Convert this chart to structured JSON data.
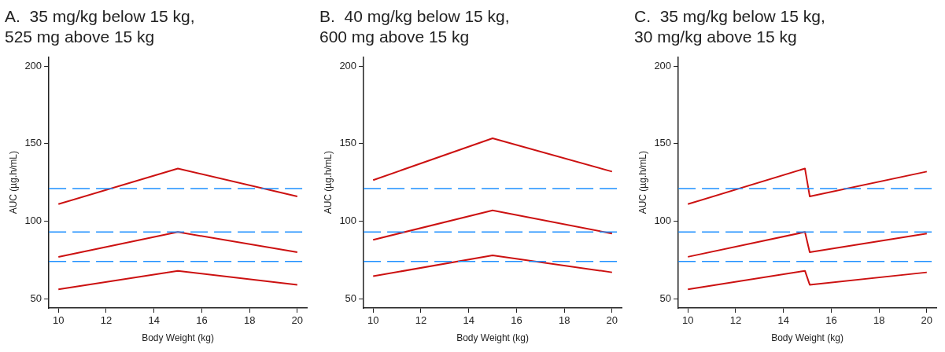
{
  "chart_data": [
    {
      "type": "line",
      "title": "A.  35 mg/kg below 15 kg,\n525 mg above 15 kg",
      "xlabel": "Body Weight (kg)",
      "ylabel": "AUC (µg.h/mL)",
      "xlim": [
        9.6,
        20.4
      ],
      "xticks": [
        10,
        12,
        14,
        16,
        18,
        20
      ],
      "ylim": [
        44,
        206
      ],
      "yticks": [
        50,
        100,
        150,
        200
      ],
      "grid": false,
      "legend": false,
      "line_style": "solid",
      "marker": "none",
      "series": [
        {
          "color": "#cc1111",
          "x": [
            10,
            15,
            20
          ],
          "values": [
            111,
            134,
            116
          ]
        },
        {
          "color": "#cc1111",
          "x": [
            10,
            15,
            20
          ],
          "values": [
            77,
            93,
            80
          ]
        },
        {
          "color": "#cc1111",
          "x": [
            10,
            15,
            20
          ],
          "values": [
            56,
            68,
            59
          ]
        }
      ],
      "ref_lines": [
        {
          "axis": "y",
          "value": 121,
          "color": "#1e90ff",
          "line_style": "dashed"
        },
        {
          "axis": "y",
          "value": 93,
          "color": "#1e90ff",
          "line_style": "dashed"
        },
        {
          "axis": "y",
          "value": 74,
          "color": "#1e90ff",
          "line_style": "dashed"
        }
      ]
    },
    {
      "type": "line",
      "title": "B.  40 mg/kg below 15 kg,\n600 mg above 15 kg",
      "xlabel": "Body Weight (kg)",
      "ylabel": "AUC (µg.h/mL)",
      "xlim": [
        9.6,
        20.4
      ],
      "xticks": [
        10,
        12,
        14,
        16,
        18,
        20
      ],
      "ylim": [
        44,
        206
      ],
      "yticks": [
        50,
        100,
        150,
        200
      ],
      "grid": false,
      "legend": false,
      "line_style": "solid",
      "marker": "none",
      "series": [
        {
          "color": "#cc1111",
          "x": [
            10,
            15,
            20
          ],
          "values": [
            126.5,
            153.5,
            132
          ]
        },
        {
          "color": "#cc1111",
          "x": [
            10,
            15,
            20
          ],
          "values": [
            88,
            107,
            92
          ]
        },
        {
          "color": "#cc1111",
          "x": [
            10,
            15,
            20
          ],
          "values": [
            64.5,
            78,
            67
          ]
        }
      ],
      "ref_lines": [
        {
          "axis": "y",
          "value": 121,
          "color": "#1e90ff",
          "line_style": "dashed"
        },
        {
          "axis": "y",
          "value": 93,
          "color": "#1e90ff",
          "line_style": "dashed"
        },
        {
          "axis": "y",
          "value": 74,
          "color": "#1e90ff",
          "line_style": "dashed"
        }
      ]
    },
    {
      "type": "line",
      "title": "C.  35 mg/kg below 15 kg,\n30 mg/kg above 15 kg",
      "xlabel": "Body Weight (kg)",
      "ylabel": "AUC (µg.h/mL)",
      "xlim": [
        9.6,
        20.4
      ],
      "xticks": [
        10,
        12,
        14,
        16,
        18,
        20
      ],
      "ylim": [
        44,
        206
      ],
      "yticks": [
        50,
        100,
        150,
        200
      ],
      "grid": false,
      "legend": false,
      "line_style": "solid",
      "marker": "none",
      "series": [
        {
          "color": "#cc1111",
          "x": [
            10,
            14.9,
            15.1,
            20
          ],
          "values": [
            111,
            134,
            116,
            132
          ]
        },
        {
          "color": "#cc1111",
          "x": [
            10,
            14.9,
            15.1,
            20
          ],
          "values": [
            77,
            93,
            80,
            92
          ]
        },
        {
          "color": "#cc1111",
          "x": [
            10,
            14.9,
            15.1,
            20
          ],
          "values": [
            56,
            68,
            59,
            67
          ]
        }
      ],
      "ref_lines": [
        {
          "axis": "y",
          "value": 121,
          "color": "#1e90ff",
          "line_style": "dashed"
        },
        {
          "axis": "y",
          "value": 93,
          "color": "#1e90ff",
          "line_style": "dashed"
        },
        {
          "axis": "y",
          "value": 74,
          "color": "#1e90ff",
          "line_style": "dashed"
        }
      ]
    }
  ]
}
